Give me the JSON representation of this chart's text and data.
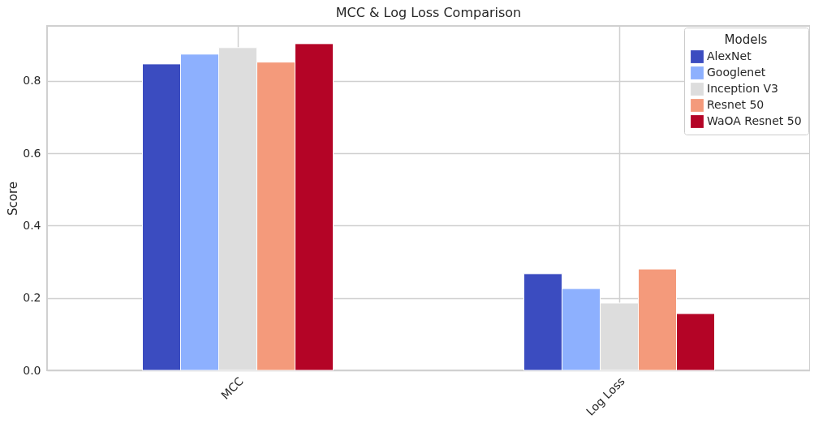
{
  "chart_data": {
    "type": "bar",
    "title": "MCC & Log Loss Comparison",
    "ylabel": "Score",
    "legend_title": "Models",
    "categories": [
      "MCC",
      "Log Loss"
    ],
    "series": [
      {
        "name": "AlexNet",
        "color": "#3b4cc0",
        "values": [
          0.847,
          0.267
        ]
      },
      {
        "name": "Googlenet",
        "color": "#8db0fe",
        "values": [
          0.874,
          0.226
        ]
      },
      {
        "name": "Inception V3",
        "color": "#dddddd",
        "values": [
          0.892,
          0.186
        ]
      },
      {
        "name": "Resnet 50",
        "color": "#f49a7b",
        "values": [
          0.852,
          0.28
        ]
      },
      {
        "name": "WaOA Resnet 50",
        "color": "#b40426",
        "values": [
          0.903,
          0.157
        ]
      }
    ],
    "ylim": [
      0,
      0.952
    ],
    "yticks": [
      {
        "value": 0,
        "label": "0.0"
      },
      {
        "value": 0.2,
        "label": "0.2"
      },
      {
        "value": 0.4,
        "label": "0.4"
      },
      {
        "value": 0.6,
        "label": "0.6"
      },
      {
        "value": 0.8,
        "label": "0.8"
      }
    ],
    "grid": true,
    "legend": "top right"
  }
}
